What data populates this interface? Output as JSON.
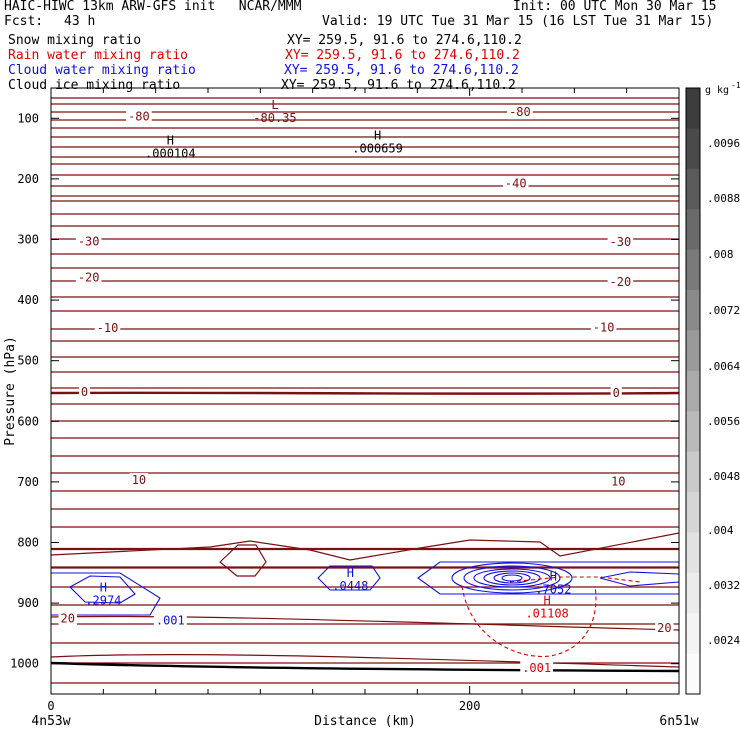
{
  "header": {
    "model": "HAIC-HIWC 13km ARW-GFS init   NCAR/MMM",
    "init": "Init: 00 UTC Mon 30 Mar 15",
    "fcst_label": "Fcst:",
    "fcst_value": "43 h",
    "valid": "Valid: 19 UTC Tue 31 Mar 15 (16 LST Tue 31 Mar 15)"
  },
  "fields": [
    {
      "name": "Snow mixing ratio",
      "xy": "XY= 259.5, 91.6 to 274.6,110.2",
      "color": "#000000"
    },
    {
      "name": "Rain water mixing ratio",
      "xy": "XY= 259.5, 91.6 to 274.6,110.2",
      "color": "#e00000"
    },
    {
      "name": "Cloud water mixing ratio",
      "xy": "XY= 259.5, 91.6 to 274.6,110.2",
      "color": "#1010e0"
    },
    {
      "name": "Cloud ice mixing ratio",
      "xy": "XY= 259.5, 91.6 to 274.6,110.2",
      "color": "#000000"
    }
  ],
  "chart_data": {
    "type": "heatmap",
    "xlabel": "Distance (km)",
    "ylabel": "Pressure (hPa)",
    "x_ticks": [
      0,
      200
    ],
    "xlim": [
      0,
      300
    ],
    "y_ticks": [
      100,
      200,
      300,
      400,
      500,
      600,
      700,
      800,
      900,
      1000
    ],
    "ylim": [
      1050,
      50
    ],
    "y_scale": "linear",
    "endpoint_labels": {
      "left": "4n53w",
      "right": "6n51w"
    },
    "colorbar": {
      "unit": "g kg",
      "unit_exponent": "-1",
      "ticks": [
        ".0096",
        ".0088",
        ".008",
        ".0072",
        ".0064",
        ".0056",
        ".0048",
        ".004",
        ".0032",
        ".0024"
      ],
      "colors": [
        "#3c3c3c",
        "#4a4a4a",
        "#5a5a5a",
        "#6a6a6a",
        "#7a7a7a",
        "#8a8a8a",
        "#9a9a9a",
        "#aaaaaa",
        "#bababa",
        "#cacaca",
        "#d6d6d6",
        "#e2e2e2",
        "#ececec",
        "#f4f4f4",
        "#fbfbfb"
      ]
    },
    "temperature_contours": {
      "color": "#7a1010",
      "labels": [
        {
          "text": "-80",
          "x": 42,
          "p": 97
        },
        {
          "text": "-80",
          "x": 224,
          "p": 90
        },
        {
          "text": "-40",
          "x": 222,
          "p": 208
        },
        {
          "text": "-30",
          "x": 18,
          "p": 303
        },
        {
          "text": "-30",
          "x": 272,
          "p": 304
        },
        {
          "text": "-20",
          "x": 18,
          "p": 363
        },
        {
          "text": "-20",
          "x": 272,
          "p": 370
        },
        {
          "text": "-10",
          "x": 27,
          "p": 446
        },
        {
          "text": "-10",
          "x": 264,
          "p": 445
        },
        {
          "text": "0",
          "x": 16,
          "p": 552
        },
        {
          "text": "0",
          "x": 270,
          "p": 553
        },
        {
          "text": "10",
          "x": 42,
          "p": 697
        },
        {
          "text": "10",
          "x": 271,
          "p": 699
        },
        {
          "text": "20",
          "x": 8,
          "p": 925
        },
        {
          "text": "20",
          "x": 293,
          "p": 941
        }
      ]
    },
    "extrema": [
      {
        "kind": "L",
        "text": "-80.35",
        "x": 107,
        "p": 90,
        "color": "#7a1010"
      },
      {
        "kind": "H",
        "text": ".000104",
        "x": 57,
        "p": 148,
        "color": "#000000"
      },
      {
        "kind": "H",
        "text": ".000659",
        "x": 156,
        "p": 140,
        "color": "#000000"
      },
      {
        "kind": "H",
        "text": ".2974",
        "x": 25,
        "p": 886,
        "color": "#1010e0"
      },
      {
        "kind": "H",
        "text": ".0448",
        "x": 143,
        "p": 862,
        "color": "#1010e0"
      },
      {
        "kind": "H",
        "text": ".7052",
        "x": 240,
        "p": 868,
        "color": "#1010e0"
      },
      {
        "kind": "H",
        "text": ".01108",
        "x": 237,
        "p": 907,
        "color": "#e00000"
      }
    ],
    "contour_labels": [
      {
        "text": ".001",
        "x": 57,
        "p": 929,
        "color": "#1010e0"
      },
      {
        "text": ".001",
        "x": 232,
        "p": 1007,
        "color": "#e00000"
      }
    ]
  }
}
